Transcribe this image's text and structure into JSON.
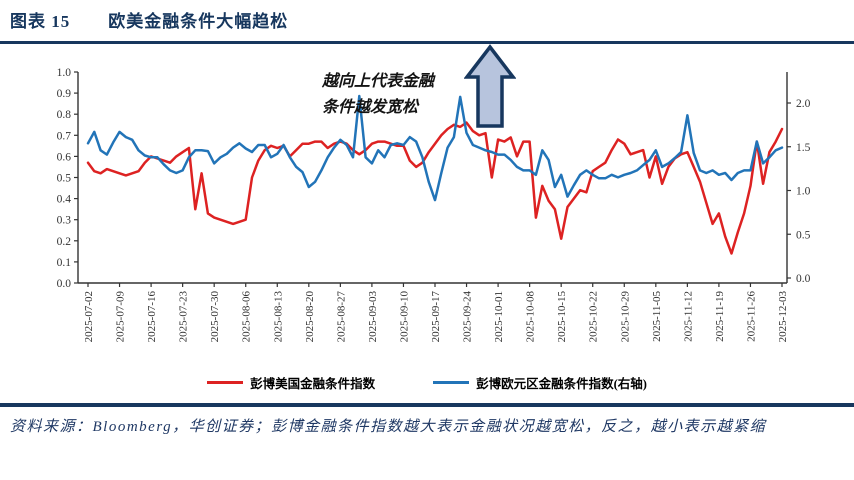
{
  "header": {
    "figure_label": "图表 15",
    "title": "欧美金融条件大幅趋松"
  },
  "annotation": {
    "line1": "越向上代表金融",
    "line2": "条件越发宽松"
  },
  "legend": [
    {
      "label": "彭博美国金融条件指数",
      "color": "#dd2222"
    },
    {
      "label": "彭博欧元区金融条件指数(右轴)",
      "color": "#2274b8"
    }
  ],
  "footer": {
    "source": "资料来源：Bloomberg，华创证券；彭博金融条件指数越大表示金融状况越宽松，反之，越小表示越紧缩"
  },
  "colors": {
    "accent": "#17375e",
    "arrow_fill": "#b7c4dd",
    "axis": "#333333",
    "tick_label": "#333333"
  },
  "chart_data": {
    "type": "line",
    "title": "",
    "grid": false,
    "legend_position": "bottom",
    "x_tick_labels": [
      "2025-07-02",
      "2025-07-09",
      "2025-07-16",
      "2025-07-23",
      "2025-07-30",
      "2025-08-06",
      "2025-08-13",
      "2025-08-20",
      "2025-08-27",
      "2025-09-03",
      "2025-09-10",
      "2025-09-17",
      "2025-09-24",
      "2025-10-01",
      "2025-10-08",
      "2025-10-15",
      "2025-10-22",
      "2025-10-29",
      "2025-11-05",
      "2025-11-12",
      "2025-11-19",
      "2025-11-26",
      "2025-12-03"
    ],
    "points_per_tick_interval": 5,
    "left_axis": {
      "tick_labels": [
        "0.0",
        "0.1",
        "0.2",
        "0.3",
        "0.4",
        "0.5",
        "0.6",
        "0.7",
        "0.8",
        "0.9",
        "1.0"
      ],
      "range": [
        0.0,
        1.0
      ]
    },
    "right_axis": {
      "tick_labels": [
        "0.0",
        "0.5",
        "1.0",
        "1.5",
        "2.0"
      ],
      "range": [
        0.0,
        2.0
      ]
    },
    "series": [
      {
        "name": "彭博美国金融条件指数",
        "axis": "left",
        "color": "#dd2222",
        "values": [
          0.57,
          0.53,
          0.52,
          0.54,
          0.53,
          0.52,
          0.51,
          0.52,
          0.53,
          0.57,
          0.6,
          0.59,
          0.58,
          0.57,
          0.6,
          0.62,
          0.64,
          0.35,
          0.52,
          0.33,
          0.31,
          0.3,
          0.29,
          0.28,
          0.29,
          0.3,
          0.5,
          0.58,
          0.63,
          0.65,
          0.64,
          0.65,
          0.6,
          0.63,
          0.66,
          0.66,
          0.67,
          0.67,
          0.64,
          0.66,
          0.67,
          0.66,
          0.63,
          0.61,
          0.63,
          0.66,
          0.67,
          0.67,
          0.66,
          0.65,
          0.65,
          0.58,
          0.55,
          0.57,
          0.62,
          0.66,
          0.7,
          0.73,
          0.75,
          0.74,
          0.76,
          0.72,
          0.7,
          0.71,
          0.5,
          0.68,
          0.67,
          0.69,
          0.6,
          0.67,
          0.67,
          0.31,
          0.46,
          0.39,
          0.35,
          0.21,
          0.36,
          0.4,
          0.44,
          0.43,
          0.53,
          0.55,
          0.57,
          0.63,
          0.68,
          0.66,
          0.61,
          0.62,
          0.63,
          0.5,
          0.6,
          0.47,
          0.55,
          0.59,
          0.61,
          0.62,
          0.55,
          0.48,
          0.38,
          0.28,
          0.33,
          0.22,
          0.14,
          0.24,
          0.33,
          0.46,
          0.67,
          0.47,
          0.62,
          0.67,
          0.73
        ]
      },
      {
        "name": "彭博欧元区金融条件指数(右轴)",
        "axis": "right",
        "color": "#2274b8",
        "values": [
          1.54,
          1.67,
          1.46,
          1.41,
          1.55,
          1.67,
          1.61,
          1.58,
          1.46,
          1.4,
          1.38,
          1.38,
          1.3,
          1.23,
          1.2,
          1.23,
          1.38,
          1.46,
          1.46,
          1.45,
          1.31,
          1.38,
          1.42,
          1.49,
          1.54,
          1.48,
          1.44,
          1.52,
          1.52,
          1.38,
          1.42,
          1.52,
          1.38,
          1.27,
          1.21,
          1.04,
          1.1,
          1.23,
          1.38,
          1.49,
          1.58,
          1.52,
          1.38,
          2.08,
          1.38,
          1.31,
          1.46,
          1.38,
          1.52,
          1.54,
          1.52,
          1.61,
          1.56,
          1.38,
          1.1,
          0.89,
          1.2,
          1.49,
          1.61,
          2.07,
          1.66,
          1.52,
          1.49,
          1.46,
          1.44,
          1.41,
          1.41,
          1.35,
          1.27,
          1.23,
          1.23,
          1.18,
          1.46,
          1.35,
          1.04,
          1.18,
          0.93,
          1.06,
          1.18,
          1.23,
          1.18,
          1.14,
          1.14,
          1.18,
          1.15,
          1.18,
          1.2,
          1.23,
          1.29,
          1.35,
          1.46,
          1.27,
          1.31,
          1.37,
          1.44,
          1.86,
          1.43,
          1.23,
          1.2,
          1.23,
          1.18,
          1.2,
          1.12,
          1.2,
          1.23,
          1.23,
          1.56,
          1.31,
          1.38,
          1.46,
          1.49
        ]
      }
    ]
  }
}
